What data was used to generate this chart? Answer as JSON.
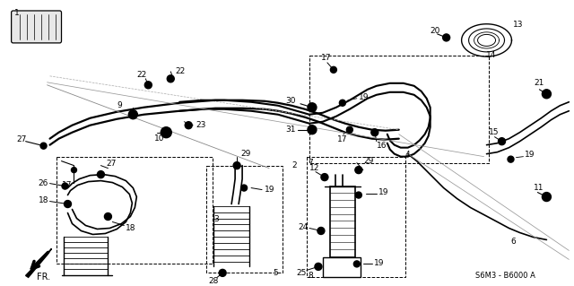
{
  "bg_color": "#ffffff",
  "diagram_code": "S6M3 - B6000 A",
  "fig_w": 6.4,
  "fig_h": 3.19,
  "dpi": 100
}
